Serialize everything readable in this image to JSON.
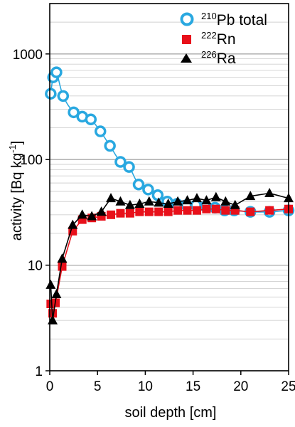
{
  "chart_data": {
    "type": "scatter",
    "title": "",
    "xlabel": "soil depth [cm]",
    "ylabel": {
      "prefix": "activity [Bq kg",
      "exponent": "-1",
      "suffix": "]"
    },
    "x_scale": "linear",
    "y_scale": "log",
    "xlim": [
      0,
      25
    ],
    "ylim": [
      1,
      3000
    ],
    "x_ticks": [
      0,
      5,
      10,
      15,
      20,
      25
    ],
    "x_tick_labels": [
      "0",
      "5",
      "10",
      "15",
      "20",
      "25"
    ],
    "y_ticks": [
      1,
      10,
      100,
      1000
    ],
    "y_tick_labels": [
      "1",
      "10",
      "100",
      "1000"
    ],
    "grid": "horizontal major and minor lines",
    "legend_position": "top-right",
    "series": [
      {
        "id": "pb210",
        "name_mass": "210",
        "name_element": "Pb total",
        "marker": "open-circle",
        "line": "smooth",
        "color": "#29a8e0",
        "x": [
          0.1,
          0.35,
          0.7,
          1.4,
          2.5,
          3.4,
          4.3,
          5.3,
          6.3,
          7.4,
          8.3,
          9.3,
          10.3,
          11.3,
          12.3,
          13.3,
          14.3,
          15.3,
          16.3,
          17.3,
          18.3,
          19.3,
          21.0,
          23.0,
          25.0
        ],
        "y": [
          420,
          600,
          670,
          400,
          280,
          255,
          240,
          185,
          135,
          95,
          85,
          58,
          52,
          46,
          40,
          38,
          37,
          37,
          36,
          35,
          33,
          33,
          32,
          32,
          33
        ]
      },
      {
        "id": "rn222",
        "name_mass": "222",
        "name_element": "Rn",
        "marker": "square",
        "line": "straight",
        "color": "#e8101a",
        "x": [
          0.1,
          0.3,
          0.6,
          1.3,
          2.4,
          3.4,
          4.4,
          5.4,
          6.4,
          7.4,
          8.4,
          9.4,
          10.4,
          11.4,
          12.4,
          13.4,
          14.4,
          15.4,
          16.4,
          17.4,
          18.4,
          19.4,
          21.0,
          23.0,
          25.0
        ],
        "y": [
          4.3,
          3.5,
          4.4,
          9.7,
          21,
          27,
          28,
          29,
          30,
          31,
          31,
          32,
          32,
          32,
          32,
          33,
          33,
          33,
          34,
          34,
          33,
          33,
          32,
          33,
          34
        ]
      },
      {
        "id": "ra226",
        "name_mass": "226",
        "name_element": "Ra",
        "marker": "triangle",
        "line": "straight",
        "color": "#000000",
        "x": [
          0.1,
          0.3,
          0.7,
          1.3,
          2.4,
          3.4,
          4.4,
          5.4,
          6.4,
          7.4,
          8.4,
          9.4,
          10.4,
          11.4,
          12.4,
          13.4,
          14.4,
          15.4,
          16.4,
          17.4,
          18.4,
          19.4,
          21.0,
          23.0,
          25.0
        ],
        "y": [
          6.5,
          3.0,
          5.3,
          11.5,
          24,
          30,
          29,
          32,
          43,
          40,
          37,
          38,
          40,
          39,
          38,
          40,
          41,
          43,
          41,
          44,
          40,
          37,
          45,
          48,
          43
        ]
      }
    ]
  }
}
